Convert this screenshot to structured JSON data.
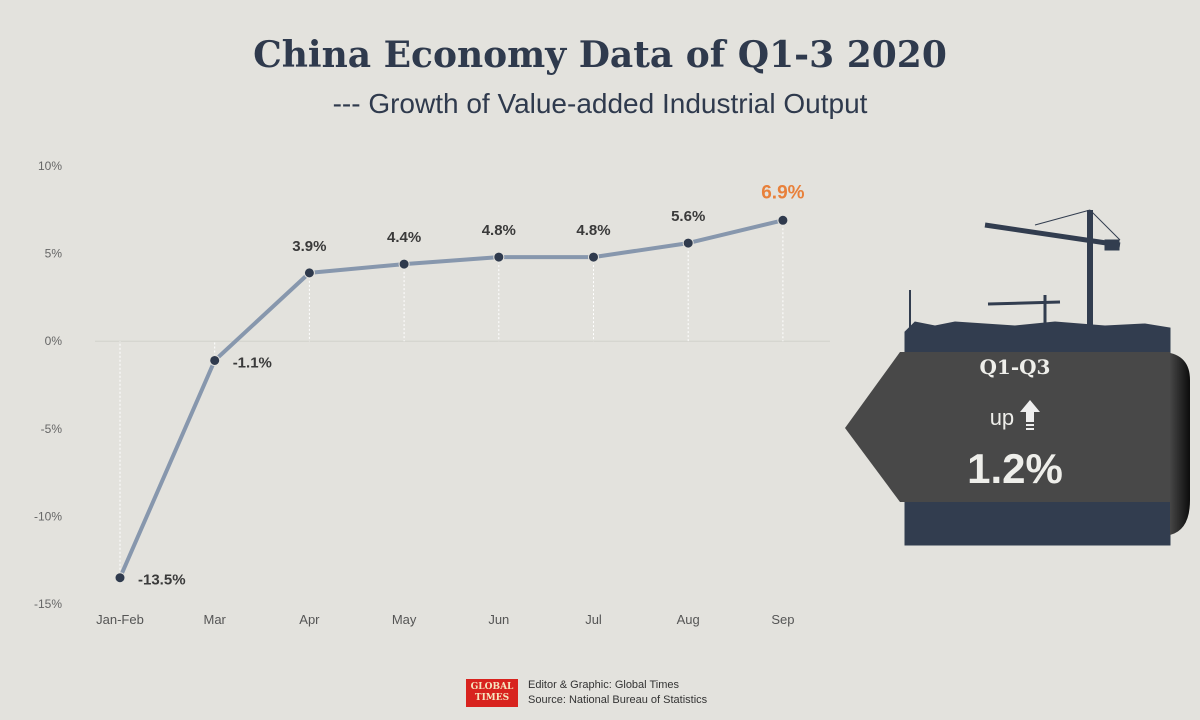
{
  "title": "China Economy Data of Q1-3 2020",
  "subtitle": "--- Growth of Value-added Industrial Output",
  "chart_data": {
    "type": "line",
    "title": "China Economy Data of Q1-3 2020",
    "categories": [
      "Jan-Feb",
      "Mar",
      "Apr",
      "May",
      "Jun",
      "Jul",
      "Aug",
      "Sep"
    ],
    "values": [
      -13.5,
      -1.1,
      3.9,
      4.4,
      4.8,
      4.8,
      5.6,
      6.9
    ],
    "labels": [
      "-13.5%",
      "-1.1%",
      "3.9%",
      "4.4%",
      "4.8%",
      "4.8%",
      "5.6%",
      "6.9%"
    ],
    "yticks": [
      10,
      5,
      0,
      -5,
      -10,
      -15
    ],
    "ytick_labels": [
      "10%",
      "5%",
      "0%",
      "-5%",
      "-10%",
      "-15%"
    ],
    "ylim": [
      -15,
      10
    ],
    "line_color": "#8797ad",
    "highlight_color": "#e8803a",
    "xlabel": "",
    "ylabel": ""
  },
  "badge": {
    "period": "Q1-Q3",
    "direction": "up",
    "value": "1.2%"
  },
  "footer": {
    "logo": "GLOBAL TIMES",
    "editor": "Editor & Graphic: Global Times",
    "source": "Source: National Bureau of Statistics"
  }
}
